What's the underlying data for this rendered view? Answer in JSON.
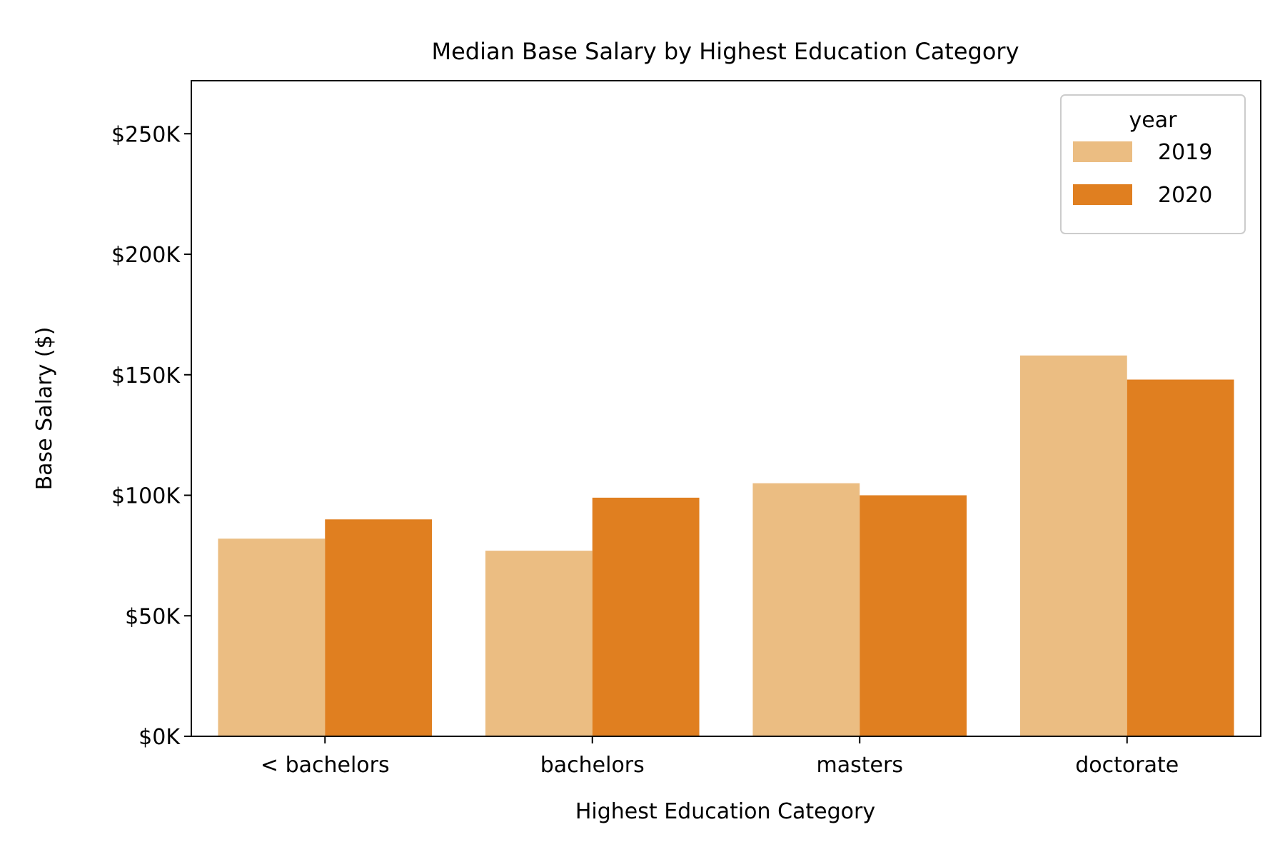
{
  "chart_data": {
    "type": "bar",
    "title": "Median Base Salary by Highest Education Category",
    "xlabel": "Highest Education Category",
    "ylabel": "Base Salary ($)",
    "categories": [
      "< bachelors",
      "bachelors",
      "masters",
      "doctorate"
    ],
    "series": [
      {
        "name": "2019",
        "color": "#EBBD82",
        "values": [
          82000,
          77000,
          105000,
          158000
        ]
      },
      {
        "name": "2020",
        "color": "#E07F20",
        "values": [
          90000,
          99000,
          100000,
          148000
        ]
      }
    ],
    "ylim": [
      0,
      272000
    ],
    "yticks": [
      0,
      50000,
      100000,
      150000,
      200000,
      250000
    ],
    "ytick_labels": [
      "$0K",
      "$50K",
      "$100K",
      "$150K",
      "$200K",
      "$250K"
    ],
    "legend": {
      "title": "year",
      "placement": "upper-right"
    },
    "grid": false
  }
}
